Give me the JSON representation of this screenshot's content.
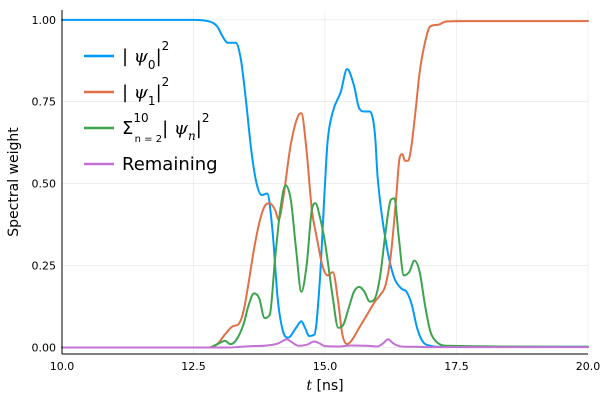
{
  "chart_data": {
    "type": "line",
    "xlabel_prefix": "t",
    "xlabel_suffix": "[ns]",
    "ylabel": "Spectral weight",
    "xlim": [
      10,
      20
    ],
    "ylim": [
      -0.02,
      1.03
    ],
    "x_ticks": [
      10,
      12.5,
      15,
      17.5,
      20
    ],
    "x_tick_labels": [
      "10.0",
      "12.5",
      "15.0",
      "17.5",
      "20.0"
    ],
    "y_ticks": [
      0,
      0.25,
      0.5,
      0.75,
      1.0
    ],
    "y_tick_labels": [
      "0.00",
      "0.25",
      "0.50",
      "0.75",
      "1.00"
    ],
    "grid": true,
    "legend_position": "top-left",
    "series": [
      {
        "name": "|ψ0|²",
        "color": "#009AFA",
        "points": [
          [
            10,
            1
          ],
          [
            12.5,
            1
          ],
          [
            12.8,
            0.995
          ],
          [
            12.95,
            0.98
          ],
          [
            13.05,
            0.95
          ],
          [
            13.15,
            0.93
          ],
          [
            13.3,
            0.93
          ],
          [
            13.4,
            0.88
          ],
          [
            13.5,
            0.75
          ],
          [
            13.6,
            0.6
          ],
          [
            13.7,
            0.5
          ],
          [
            13.8,
            0.465
          ],
          [
            13.9,
            0.47
          ],
          [
            14.0,
            0.36
          ],
          [
            14.1,
            0.15
          ],
          [
            14.2,
            0.05
          ],
          [
            14.3,
            0.03
          ],
          [
            14.45,
            0.06
          ],
          [
            14.55,
            0.08
          ],
          [
            14.62,
            0.06
          ],
          [
            14.7,
            0.035
          ],
          [
            14.8,
            0.04
          ],
          [
            14.9,
            0.2
          ],
          [
            15.0,
            0.5
          ],
          [
            15.05,
            0.63
          ],
          [
            15.15,
            0.72
          ],
          [
            15.3,
            0.78
          ],
          [
            15.42,
            0.85
          ],
          [
            15.55,
            0.8
          ],
          [
            15.65,
            0.73
          ],
          [
            15.75,
            0.72
          ],
          [
            15.85,
            0.72
          ],
          [
            15.95,
            0.65
          ],
          [
            16.0,
            0.52
          ],
          [
            16.15,
            0.33
          ],
          [
            16.3,
            0.22
          ],
          [
            16.45,
            0.18
          ],
          [
            16.55,
            0.17
          ],
          [
            16.65,
            0.13
          ],
          [
            16.75,
            0.06
          ],
          [
            16.85,
            0.02
          ],
          [
            17.0,
            0.005
          ],
          [
            17.2,
            0.002
          ],
          [
            20,
            0.002
          ]
        ]
      },
      {
        "name": "|ψ1|²",
        "color": "#E26F46",
        "points": [
          [
            10,
            0
          ],
          [
            12.8,
            0
          ],
          [
            12.95,
            0.01
          ],
          [
            13.1,
            0.04
          ],
          [
            13.25,
            0.065
          ],
          [
            13.35,
            0.07
          ],
          [
            13.45,
            0.11
          ],
          [
            13.55,
            0.2
          ],
          [
            13.65,
            0.3
          ],
          [
            13.75,
            0.38
          ],
          [
            13.85,
            0.43
          ],
          [
            13.95,
            0.44
          ],
          [
            14.05,
            0.42
          ],
          [
            14.12,
            0.39
          ],
          [
            14.2,
            0.45
          ],
          [
            14.35,
            0.62
          ],
          [
            14.5,
            0.71
          ],
          [
            14.55,
            0.715
          ],
          [
            14.65,
            0.6
          ],
          [
            14.75,
            0.42
          ],
          [
            14.85,
            0.33
          ],
          [
            14.95,
            0.25
          ],
          [
            15.05,
            0.22
          ],
          [
            15.15,
            0.23
          ],
          [
            15.25,
            0.14
          ],
          [
            15.33,
            0.04
          ],
          [
            15.42,
            0.01
          ],
          [
            15.5,
            0.02
          ],
          [
            15.65,
            0.06
          ],
          [
            15.8,
            0.1
          ],
          [
            15.95,
            0.14
          ],
          [
            16.05,
            0.16
          ],
          [
            16.15,
            0.19
          ],
          [
            16.25,
            0.28
          ],
          [
            16.35,
            0.45
          ],
          [
            16.42,
            0.58
          ],
          [
            16.47,
            0.59
          ],
          [
            16.52,
            0.57
          ],
          [
            16.58,
            0.57
          ],
          [
            16.63,
            0.6
          ],
          [
            16.72,
            0.72
          ],
          [
            16.8,
            0.84
          ],
          [
            16.9,
            0.93
          ],
          [
            17.0,
            0.98
          ],
          [
            17.15,
            0.985
          ],
          [
            17.3,
            0.995
          ],
          [
            17.6,
            0.996
          ],
          [
            20,
            0.996
          ]
        ]
      },
      {
        "name": "Σ|ψn|² (n=2…10)",
        "color": "#3DA44E",
        "points": [
          [
            10,
            0
          ],
          [
            12.8,
            0
          ],
          [
            12.95,
            0.01
          ],
          [
            13.1,
            0.02
          ],
          [
            13.2,
            0.01
          ],
          [
            13.3,
            0.02
          ],
          [
            13.45,
            0.07
          ],
          [
            13.55,
            0.13
          ],
          [
            13.65,
            0.165
          ],
          [
            13.75,
            0.15
          ],
          [
            13.85,
            0.09
          ],
          [
            13.95,
            0.1
          ],
          [
            14.05,
            0.27
          ],
          [
            14.15,
            0.42
          ],
          [
            14.25,
            0.495
          ],
          [
            14.35,
            0.45
          ],
          [
            14.45,
            0.3
          ],
          [
            14.55,
            0.17
          ],
          [
            14.65,
            0.25
          ],
          [
            14.75,
            0.42
          ],
          [
            14.82,
            0.44
          ],
          [
            14.9,
            0.4
          ],
          [
            15.0,
            0.32
          ],
          [
            15.15,
            0.15
          ],
          [
            15.25,
            0.06
          ],
          [
            15.35,
            0.07
          ],
          [
            15.45,
            0.12
          ],
          [
            15.55,
            0.17
          ],
          [
            15.65,
            0.185
          ],
          [
            15.75,
            0.17
          ],
          [
            15.85,
            0.14
          ],
          [
            15.95,
            0.15
          ],
          [
            16.05,
            0.22
          ],
          [
            16.15,
            0.35
          ],
          [
            16.25,
            0.45
          ],
          [
            16.32,
            0.455
          ],
          [
            16.4,
            0.34
          ],
          [
            16.5,
            0.22
          ],
          [
            16.6,
            0.23
          ],
          [
            16.7,
            0.265
          ],
          [
            16.8,
            0.23
          ],
          [
            16.9,
            0.13
          ],
          [
            17.0,
            0.05
          ],
          [
            17.1,
            0.02
          ],
          [
            17.3,
            0.005
          ],
          [
            20,
            0.002
          ]
        ]
      },
      {
        "name": "Remaining",
        "color": "#C371D2",
        "points": [
          [
            10,
            0
          ],
          [
            13.2,
            0
          ],
          [
            13.4,
            0.002
          ],
          [
            13.6,
            0.004
          ],
          [
            13.9,
            0.006
          ],
          [
            14.1,
            0.012
          ],
          [
            14.2,
            0.02
          ],
          [
            14.27,
            0.025
          ],
          [
            14.35,
            0.018
          ],
          [
            14.5,
            0.005
          ],
          [
            14.65,
            0.008
          ],
          [
            14.8,
            0.018
          ],
          [
            14.9,
            0.012
          ],
          [
            15.0,
            0.004
          ],
          [
            15.25,
            0.003
          ],
          [
            15.5,
            0.006
          ],
          [
            15.8,
            0.005
          ],
          [
            16.0,
            0.003
          ],
          [
            16.1,
            0.012
          ],
          [
            16.2,
            0.025
          ],
          [
            16.3,
            0.012
          ],
          [
            16.45,
            0.003
          ],
          [
            16.7,
            0.002
          ],
          [
            17.0,
            0.001
          ],
          [
            20,
            0.001
          ]
        ]
      }
    ]
  }
}
